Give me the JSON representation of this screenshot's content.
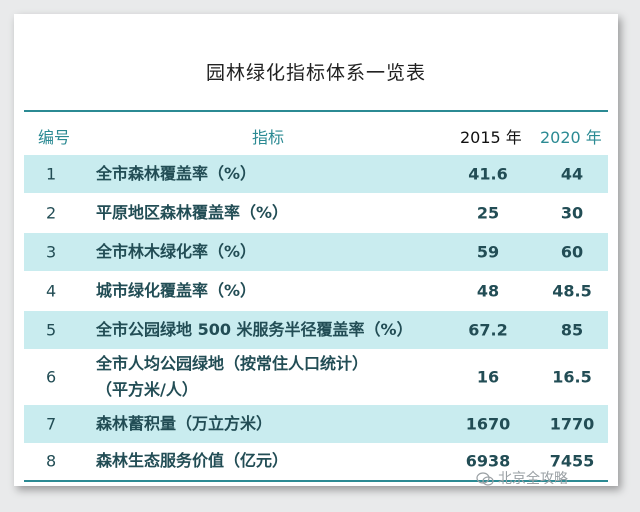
{
  "title": "园林绿化指标体系一览表",
  "header": {
    "num": "编号",
    "indicator": "指标",
    "y2015": "2015 年",
    "y2020": "2020 年"
  },
  "rows": [
    {
      "num": "1",
      "indicator": "全市森林覆盖率（%）",
      "v2015": "41.6",
      "v2020": "44"
    },
    {
      "num": "2",
      "indicator": "平原地区森林覆盖率（%）",
      "v2015": "25",
      "v2020": "30"
    },
    {
      "num": "3",
      "indicator": "全市林木绿化率（%）",
      "v2015": "59",
      "v2020": "60"
    },
    {
      "num": "4",
      "indicator": "城市绿化覆盖率（%）",
      "v2015": "48",
      "v2020": "48.5"
    },
    {
      "num": "5",
      "indicator": "全市公园绿地 500 米服务半径覆盖率（%）",
      "v2015": "67.2",
      "v2020": "85"
    },
    {
      "num": "6",
      "indicator": "全市人均公园绿地（按常住人口统计）",
      "indicator_line2": "（平方米/人）",
      "v2015": "16",
      "v2020": "16.5"
    },
    {
      "num": "7",
      "indicator": "森林蓄积量（万立方米）",
      "v2015": "1670",
      "v2020": "1770"
    },
    {
      "num": "8",
      "indicator": "森林生态服务价值（亿元）",
      "v2015": "6938",
      "v2020": "7455"
    }
  ],
  "watermark": "北京全攻略",
  "icons": {
    "watermark": "wechat-icon"
  },
  "colors": {
    "accent": "#2b8a93",
    "shade": "#c9ecef",
    "text": "#224d55"
  }
}
